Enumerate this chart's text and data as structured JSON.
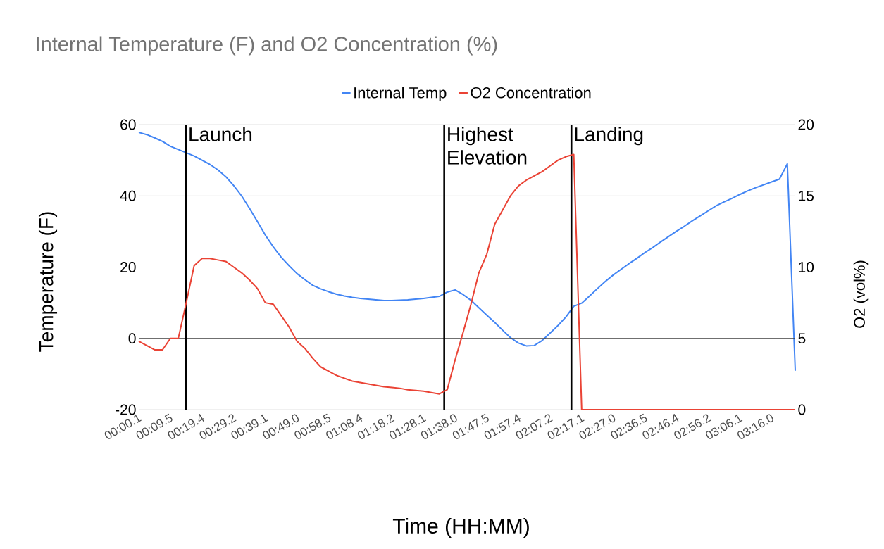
{
  "chart_data": {
    "type": "line",
    "title": "Internal Temperature (F) and O2 Concentration (%)",
    "xlabel": "Time (HH:MM)",
    "ylabel": "Temperature (F)",
    "y2label": "O2 (vol%)",
    "legend": "top",
    "grid": "y",
    "marker": "none",
    "line_style": "solid",
    "categories": [
      "00:00.1",
      null,
      null,
      null,
      "00:09.5",
      null,
      null,
      null,
      "00:19.4",
      null,
      null,
      null,
      "00:29.2",
      null,
      null,
      null,
      "00:39.1",
      null,
      null,
      null,
      "00:49.0",
      null,
      null,
      null,
      "00:58.5",
      null,
      null,
      null,
      "01:08.4",
      null,
      null,
      null,
      "01:18.2",
      null,
      null,
      null,
      "01:28.1",
      null,
      null,
      null,
      "01:38.0",
      null,
      null,
      null,
      "01:47.5",
      null,
      null,
      null,
      "01:57.4",
      null,
      null,
      null,
      "02:07.2",
      null,
      null,
      null,
      "02:17.1",
      null,
      null,
      null,
      "02:27.0",
      null,
      null,
      null,
      "02:36.5",
      null,
      null,
      null,
      "02:46.4",
      null,
      null,
      null,
      "02:56.2",
      null,
      null,
      null,
      "03:06.1",
      null,
      null,
      null,
      "03:16.0",
      null,
      null,
      null
    ],
    "ylim": [
      -20,
      60
    ],
    "yticks": [
      -20,
      0,
      20,
      40,
      60
    ],
    "y2lim": [
      0,
      20
    ],
    "y2ticks": [
      0,
      5,
      10,
      15,
      20
    ],
    "annotations": [
      "Launch",
      "Highest Elevation",
      "Landing"
    ],
    "ref_lines": [
      {
        "axis": "y",
        "value": 0,
        "color": "#333333"
      }
    ],
    "series": [
      {
        "name": "Internal Temp",
        "color": "#4285f4",
        "values": [
          57.8,
          57.2,
          56.3,
          55.3,
          53.9,
          53.0,
          52.1,
          51.2,
          50.0,
          48.8,
          47.3,
          45.4,
          42.9,
          40.0,
          36.5,
          32.8,
          29.0,
          25.7,
          22.8,
          20.4,
          18.2,
          16.5,
          14.9,
          13.9,
          13.1,
          12.4,
          11.9,
          11.5,
          11.2,
          11.0,
          10.8,
          10.6,
          10.6,
          10.7,
          10.8,
          11.0,
          11.2,
          11.5,
          11.8,
          13.0,
          13.6,
          12.3,
          10.7,
          8.6,
          6.5,
          4.5,
          2.3,
          0.2,
          -1.3,
          -2.1,
          -2.0,
          -0.6,
          1.5,
          3.6,
          6.0,
          9.0,
          9.9,
          11.9,
          14.0,
          16.0,
          17.8,
          19.4,
          21.0,
          22.5,
          24.1,
          25.5,
          27.1,
          28.6,
          30.1,
          31.5,
          33.0,
          34.4,
          35.8,
          37.2,
          38.3,
          39.3,
          40.4,
          41.4,
          42.3,
          43.1,
          43.9,
          44.7,
          49.0,
          -9.1
        ]
      },
      {
        "name": "O2 Concentration",
        "color": "#ea4335",
        "axis": "y2",
        "values": [
          4.8,
          4.5,
          4.2,
          4.2,
          5.0,
          5.0,
          7.5,
          10.1,
          10.6,
          10.6,
          10.5,
          10.4,
          10.0,
          9.6,
          9.1,
          8.5,
          7.5,
          7.4,
          6.6,
          5.8,
          4.8,
          4.3,
          3.6,
          3.0,
          2.7,
          2.4,
          2.2,
          2.0,
          1.9,
          1.8,
          1.7,
          1.6,
          1.55,
          1.5,
          1.4,
          1.35,
          1.3,
          1.2,
          1.1,
          1.4,
          3.5,
          5.4,
          7.4,
          9.6,
          10.9,
          13.0,
          14.0,
          15.0,
          15.7,
          16.1,
          16.4,
          16.7,
          17.1,
          17.5,
          17.75,
          17.9,
          0,
          0,
          0,
          0,
          0,
          0,
          0,
          0,
          0,
          0,
          0,
          0,
          0,
          0,
          0,
          0,
          0,
          0,
          0,
          0,
          0,
          0,
          0,
          0,
          0,
          0,
          0,
          0
        ]
      }
    ]
  }
}
